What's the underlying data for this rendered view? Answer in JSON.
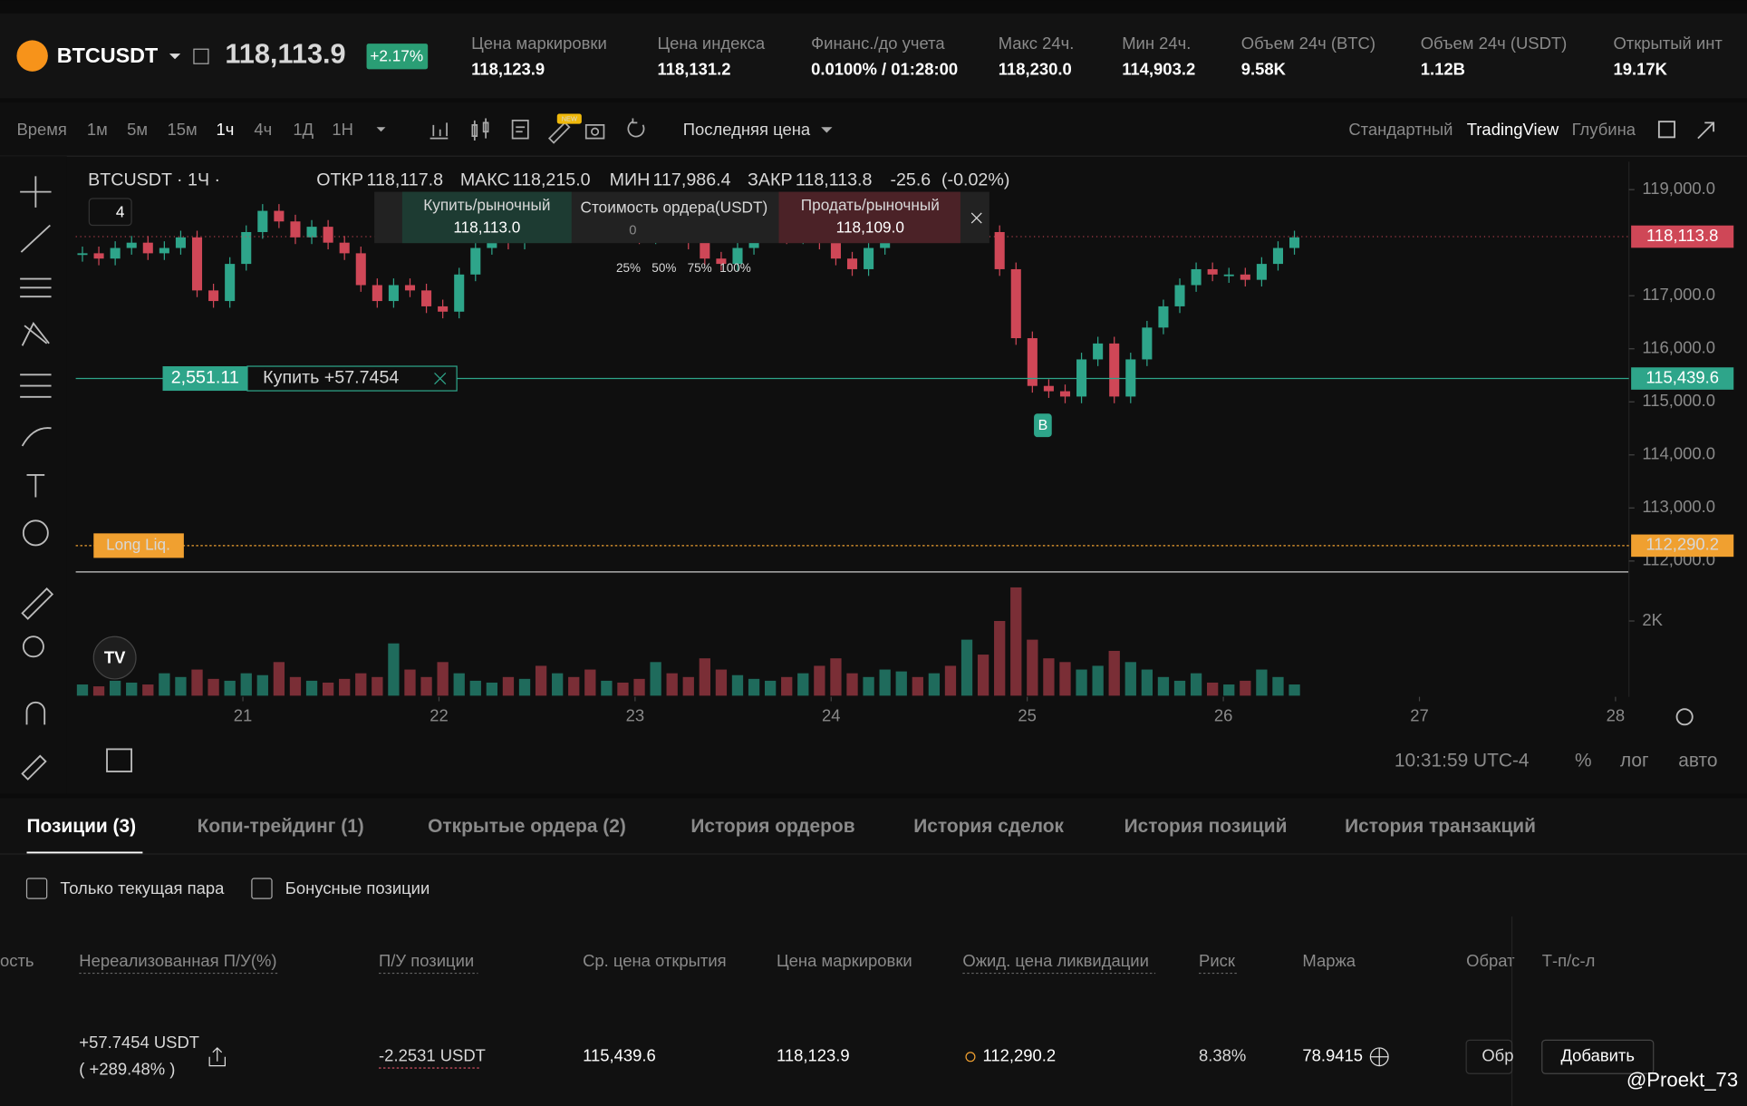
{
  "header": {
    "symbol": "BTCUSDT",
    "price": "118,113.9",
    "change": "+2.17%",
    "stats": [
      {
        "label": "Цена маркировки",
        "value": "118,123.9"
      },
      {
        "label": "Цена индекса",
        "value": "118,131.2"
      },
      {
        "label": "Финанс./до учета",
        "value": "0.0100% / 01:28:00"
      },
      {
        "label": "Макс 24ч.",
        "value": "118,230.0"
      },
      {
        "label": "Мин 24ч.",
        "value": "114,903.2"
      },
      {
        "label": "Объем 24ч (BTC)",
        "value": "9.58K"
      },
      {
        "label": "Объем 24ч (USDT)",
        "value": "1.12B"
      },
      {
        "label": "Открытый инт",
        "value": "19.17K"
      }
    ]
  },
  "toolbar": {
    "intervals": [
      "Время",
      "1м",
      "5м",
      "15м",
      "1ч",
      "4ч",
      "1Д",
      "1Н"
    ],
    "badge": "NEW",
    "price_type": "Последняя цена",
    "views": [
      "Стандартный",
      "TradingView",
      "Глубина"
    ]
  },
  "chart": {
    "legend": {
      "symbol": "BTCUSDT · 1Ч ·",
      "open_label": "ОТКР",
      "open": "118,117.8",
      "high_label": "МАКС",
      "high": "118,215.0",
      "low_label": "МИН",
      "low": "117,986.4",
      "close_label": "ЗАКР",
      "close": "118,113.8",
      "change": "-25.6",
      "change_pct": "(-0.02%)"
    },
    "indicators": "4",
    "order_panel": {
      "buy_label": "Купить/рыночный",
      "buy_price": "118,113.0",
      "cost_label": "Стоимость ордера(USDT)",
      "cost": "0",
      "sell_label": "Продать/рыночный",
      "sell_price": "118,109.0",
      "percents": [
        "25%",
        "50%",
        "75%",
        "100%"
      ]
    },
    "position": {
      "price": {
        "value": 115439.6,
        "label": "115,439.6"
      },
      "pnl": "2,551.11",
      "text": "Купить +57.7454"
    },
    "liquidation": {
      "text": "Long Liq.",
      "price": {
        "value": 112290.2,
        "label": "112,290.2"
      }
    },
    "last_price": {
      "value": 118113.8,
      "label": "118,113.8"
    },
    "marker": "B",
    "ylim": [
      112200,
      119300
    ],
    "yticks": [
      {
        "value": 119000,
        "label": "119,000.0"
      },
      {
        "value": 117000,
        "label": "117,000.0"
      },
      {
        "value": 116000,
        "label": "116,000.0"
      },
      {
        "value": 115000,
        "label": "115,000.0"
      },
      {
        "value": 114000,
        "label": "114,000.0"
      },
      {
        "value": 113000,
        "label": "113,000.0"
      },
      {
        "value": 112000,
        "label": "112,000.0"
      }
    ],
    "xticks": [
      21,
      22,
      23,
      24,
      25,
      26,
      27,
      28
    ],
    "closes": [
      117800,
      117700,
      117900,
      118000,
      117800,
      117900,
      118100,
      117100,
      116900,
      117600,
      118200,
      118600,
      118400,
      118100,
      118300,
      118000,
      117800,
      117200,
      116900,
      117200,
      117100,
      116800,
      116700,
      117400,
      117900,
      118100,
      118000,
      118300,
      118200,
      118400,
      118300,
      118200,
      118400,
      118300,
      118100,
      118300,
      118200,
      118000,
      117700,
      117600,
      117900,
      118200,
      118300,
      118100,
      118200,
      118000,
      117700,
      117500,
      117900,
      118200,
      118300,
      118200,
      118400,
      118300,
      118400,
      118200,
      117500,
      116200,
      115300,
      115200,
      115100,
      115800,
      116100,
      115100,
      115800,
      116400,
      116800,
      117200,
      117500,
      117400,
      117400,
      117300,
      117600,
      117900,
      118100
    ],
    "volumes": [
      300,
      250,
      400,
      350,
      300,
      600,
      500,
      700,
      450,
      400,
      600,
      550,
      900,
      500,
      400,
      350,
      450,
      600,
      500,
      1400,
      700,
      500,
      900,
      600,
      400,
      350,
      500,
      450,
      800,
      600,
      500,
      700,
      400,
      350,
      450,
      900,
      600,
      500,
      1000,
      700,
      550,
      450,
      400,
      500,
      600,
      800,
      1000,
      600,
      500,
      700,
      650,
      500,
      600,
      800,
      1500,
      1100,
      2000,
      2900,
      1500,
      1000,
      900,
      700,
      800,
      1200,
      900,
      700,
      500,
      400,
      600,
      350,
      300,
      400,
      700,
      500,
      300
    ],
    "volume_tick": {
      "value": 2000,
      "label": "2K"
    },
    "time": "10:31:59 UTC-4",
    "scale_options": [
      "%",
      "лог",
      "авто"
    ]
  },
  "tabs": [
    "Позиции (3)",
    "Копи-трейдинг (1)",
    "Открытые ордера (2)",
    "История ордеров",
    "История сделок",
    "История позиций",
    "История транзакций"
  ],
  "filters": [
    "Только текущая пара",
    "Бонусные позиции"
  ],
  "columns": [
    "ость",
    "Нереализованная П/У(%)",
    "П/У позиции",
    "Ср. цена открытия",
    "Цена маркировки",
    "Ожид. цена ликвидации",
    "Риск",
    "Маржа",
    "Обрат",
    "Т-п/с-л"
  ],
  "row": {
    "pnl": "+57.7454 USDT",
    "pnl_pct": "( +289.48% )",
    "position_pnl": "-2.2531 USDT",
    "open_price": "115,439.6",
    "mark_price": "118,123.9",
    "liq_price": "112,290.2",
    "risk": "8.38%",
    "margin": "78.9415",
    "reverse": "Обр",
    "add": "Добавить"
  },
  "watermark": "@Proekt_73"
}
